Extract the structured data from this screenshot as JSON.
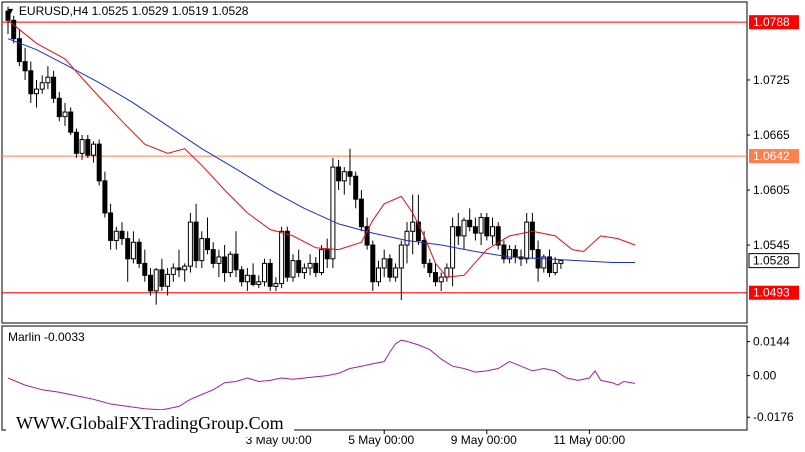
{
  "header": {
    "symbol": "EURUSD,H4",
    "open": "1.0525",
    "high": "1.0529",
    "low": "1.0519",
    "close": "1.0528"
  },
  "watermark": "WWW.GlobalFXTradingGroup.Com",
  "colors": {
    "bull_body": "#ffffff",
    "bear_body": "#000000",
    "candle_outline": "#000000",
    "sma_fast": "#e01010",
    "sma_slow": "#1a2fc8",
    "level_red": "#ff0000",
    "level_orange": "#ff7f50",
    "marlin": "#a020a0",
    "current_price_box": "#ffffff"
  },
  "chart_data": [
    {
      "type": "candlestick",
      "symbol": "EURUSD",
      "timeframe": "H4",
      "y_ticks": [
        1.0725,
        1.0665,
        1.0605,
        1.0545
      ],
      "y_range": [
        1.046,
        1.081
      ],
      "x_labels": [
        "3 May 00:00",
        "5 May 00:00",
        "9 May 00:00",
        "11 May 00:00"
      ],
      "x_label_bar_index": [
        48,
        66,
        84,
        102
      ],
      "horizontal_levels": [
        {
          "price": 1.0788,
          "label": "1.0788",
          "color": "#ff0000"
        },
        {
          "price": 1.0642,
          "label": "1.0642",
          "color": "#ff7f50"
        },
        {
          "price": 1.0493,
          "label": "1.0493",
          "color": "#ff0000"
        }
      ],
      "current_price": {
        "price": 1.0528,
        "label": "1.0528"
      },
      "candles": [
        [
          1.08,
          1.0805,
          1.0775,
          1.079
        ],
        [
          1.079,
          1.0795,
          1.0765,
          1.077
        ],
        [
          1.077,
          1.078,
          1.074,
          1.0745
        ],
        [
          1.0745,
          1.076,
          1.0725,
          1.0735
        ],
        [
          1.0735,
          1.0745,
          1.07,
          1.071
        ],
        [
          1.071,
          1.0725,
          1.0695,
          1.0715
        ],
        [
          1.0715,
          1.073,
          1.071,
          1.0722
        ],
        [
          1.0722,
          1.074,
          1.0715,
          1.0728
        ],
        [
          1.0728,
          1.0735,
          1.07,
          1.0705
        ],
        [
          1.0705,
          1.0712,
          1.068,
          1.0685
        ],
        [
          1.0685,
          1.07,
          1.0675,
          1.069
        ],
        [
          1.069,
          1.0695,
          1.0665,
          1.0668
        ],
        [
          1.0668,
          1.0672,
          1.064,
          1.0645
        ],
        [
          1.0645,
          1.0665,
          1.0638,
          1.066
        ],
        [
          1.066,
          1.0665,
          1.064,
          1.0643
        ],
        [
          1.0643,
          1.0658,
          1.0635,
          1.0655
        ],
        [
          1.0655,
          1.066,
          1.061,
          1.0615
        ],
        [
          1.0615,
          1.0625,
          1.0575,
          1.058
        ],
        [
          1.058,
          1.059,
          1.054,
          1.055
        ],
        [
          1.055,
          1.0565,
          1.054,
          1.056
        ],
        [
          1.056,
          1.057,
          1.0545,
          1.0552
        ],
        [
          1.0552,
          1.056,
          1.0505,
          1.053
        ],
        [
          1.053,
          1.056,
          1.0525,
          1.0548
        ],
        [
          1.0548,
          1.0552,
          1.052,
          1.0525
        ],
        [
          1.0525,
          1.054,
          1.0505,
          1.0512
        ],
        [
          1.0512,
          1.052,
          1.049,
          1.0495
        ],
        [
          1.0495,
          1.052,
          1.048,
          1.0518
        ],
        [
          1.0518,
          1.053,
          1.0495,
          1.05
        ],
        [
          1.05,
          1.052,
          1.049,
          1.0513
        ],
        [
          1.0513,
          1.0525,
          1.0505,
          1.052
        ],
        [
          1.052,
          1.054,
          1.051,
          1.0518
        ],
        [
          1.0518,
          1.0525,
          1.0505,
          1.0522
        ],
        [
          1.0522,
          1.058,
          1.0515,
          1.057
        ],
        [
          1.057,
          1.059,
          1.052,
          1.0528
        ],
        [
          1.0528,
          1.056,
          1.052,
          1.0552
        ],
        [
          1.0552,
          1.0575,
          1.0535,
          1.054
        ],
        [
          1.054,
          1.0548,
          1.052,
          1.0525
        ],
        [
          1.0525,
          1.054,
          1.051,
          1.0532
        ],
        [
          1.0532,
          1.0545,
          1.0505,
          1.0515
        ],
        [
          1.0515,
          1.0538,
          1.051,
          1.0535
        ],
        [
          1.0535,
          1.056,
          1.051,
          1.0518
        ],
        [
          1.0518,
          1.0522,
          1.05,
          1.0505
        ],
        [
          1.0505,
          1.052,
          1.0495,
          1.0512
        ],
        [
          1.0512,
          1.0525,
          1.05,
          1.0502
        ],
        [
          1.0502,
          1.0512,
          1.0498,
          1.0505
        ],
        [
          1.0505,
          1.053,
          1.05,
          1.0525
        ],
        [
          1.0525,
          1.053,
          1.0495,
          1.05
        ],
        [
          1.05,
          1.051,
          1.0495,
          1.0503
        ],
        [
          1.0503,
          1.0565,
          1.0498,
          1.056
        ],
        [
          1.056,
          1.0565,
          1.0505,
          1.051
        ],
        [
          1.051,
          1.0535,
          1.0505,
          1.0528
        ],
        [
          1.0528,
          1.054,
          1.051,
          1.0515
        ],
        [
          1.0515,
          1.0525,
          1.0508,
          1.052
        ],
        [
          1.052,
          1.0535,
          1.0512,
          1.0525
        ],
        [
          1.0525,
          1.0532,
          1.051,
          1.0515
        ],
        [
          1.0515,
          1.0545,
          1.0512,
          1.054
        ],
        [
          1.054,
          1.0552,
          1.052,
          1.053
        ],
        [
          1.053,
          1.064,
          1.052,
          1.063
        ],
        [
          1.063,
          1.0638,
          1.0605,
          1.0615
        ],
        [
          1.0615,
          1.063,
          1.06,
          1.0625
        ],
        [
          1.0625,
          1.065,
          1.061,
          1.062
        ],
        [
          1.062,
          1.0625,
          1.0585,
          1.0595
        ],
        [
          1.0595,
          1.0605,
          1.056,
          1.0565
        ],
        [
          1.0565,
          1.0575,
          1.054,
          1.0545
        ],
        [
          1.0545,
          1.055,
          1.0495,
          1.0505
        ],
        [
          1.0505,
          1.0528,
          1.05,
          1.052
        ],
        [
          1.052,
          1.054,
          1.051,
          1.053
        ],
        [
          1.053,
          1.0535,
          1.0505,
          1.051
        ],
        [
          1.051,
          1.0525,
          1.0505,
          1.052
        ],
        [
          1.052,
          1.055,
          1.0485,
          1.0545
        ],
        [
          1.0545,
          1.057,
          1.0525,
          1.056
        ],
        [
          1.056,
          1.06,
          1.0535,
          1.057
        ],
        [
          1.057,
          1.06,
          1.0545,
          1.055
        ],
        [
          1.055,
          1.056,
          1.052,
          1.0525
        ],
        [
          1.0525,
          1.053,
          1.051,
          1.0515
        ],
        [
          1.0515,
          1.0525,
          1.05,
          1.0505
        ],
        [
          1.0505,
          1.0515,
          1.0495,
          1.051
        ],
        [
          1.051,
          1.0525,
          1.0505,
          1.052
        ],
        [
          1.052,
          1.0575,
          1.05,
          1.0565
        ],
        [
          1.0565,
          1.058,
          1.0545,
          1.0555
        ],
        [
          1.0555,
          1.0575,
          1.054,
          1.0572
        ],
        [
          1.0572,
          1.0585,
          1.056,
          1.0565
        ],
        [
          1.0565,
          1.0575,
          1.055,
          1.0558
        ],
        [
          1.0558,
          1.058,
          1.0545,
          1.0575
        ],
        [
          1.0575,
          1.058,
          1.055,
          1.0555
        ],
        [
          1.0555,
          1.0575,
          1.0545,
          1.0565
        ],
        [
          1.0565,
          1.057,
          1.054,
          1.0545
        ],
        [
          1.0545,
          1.055,
          1.0525,
          1.053
        ],
        [
          1.053,
          1.0545,
          1.0525,
          1.054
        ],
        [
          1.054,
          1.0545,
          1.0525,
          1.0532
        ],
        [
          1.0532,
          1.054,
          1.0522,
          1.053
        ],
        [
          1.053,
          1.058,
          1.0525,
          1.057
        ],
        [
          1.057,
          1.058,
          1.053,
          1.054
        ],
        [
          1.054,
          1.055,
          1.0505,
          1.052
        ],
        [
          1.052,
          1.0535,
          1.0515,
          1.0532
        ],
        [
          1.0532,
          1.054,
          1.051,
          1.0515
        ],
        [
          1.0515,
          1.0532,
          1.0512,
          1.0525
        ],
        [
          1.0525,
          1.0529,
          1.0519,
          1.0528
        ]
      ],
      "sma_fast": [
        [
          0,
          1.079
        ],
        [
          5,
          1.0765
        ],
        [
          10,
          1.0748
        ],
        [
          14,
          1.072
        ],
        [
          17,
          1.07
        ],
        [
          20,
          1.068
        ],
        [
          24,
          1.0655
        ],
        [
          28,
          1.0645
        ],
        [
          31,
          1.065
        ],
        [
          34,
          1.0632
        ],
        [
          38,
          1.0605
        ],
        [
          42,
          1.058
        ],
        [
          46,
          1.0562
        ],
        [
          50,
          1.0555
        ],
        [
          54,
          1.0542
        ],
        [
          58,
          1.054
        ],
        [
          62,
          1.0548
        ],
        [
          64,
          1.0572
        ],
        [
          66,
          1.059
        ],
        [
          69,
          1.0598
        ],
        [
          71,
          1.058
        ],
        [
          73,
          1.0555
        ],
        [
          75,
          1.0525
        ],
        [
          77,
          1.051
        ],
        [
          80,
          1.0512
        ],
        [
          84,
          1.054
        ],
        [
          88,
          1.0555
        ],
        [
          92,
          1.056
        ],
        [
          96,
          1.0555
        ],
        [
          99,
          1.054
        ],
        [
          101,
          1.0538
        ],
        [
          104,
          1.0555
        ],
        [
          107,
          1.0552
        ],
        [
          110,
          1.0545
        ]
      ],
      "sma_slow": [
        [
          0,
          1.077
        ],
        [
          5,
          1.0758
        ],
        [
          10,
          1.0742
        ],
        [
          16,
          1.0722
        ],
        [
          22,
          1.07
        ],
        [
          28,
          1.0675
        ],
        [
          34,
          1.065
        ],
        [
          40,
          1.0628
        ],
        [
          46,
          1.0605
        ],
        [
          52,
          1.0585
        ],
        [
          58,
          1.0568
        ],
        [
          64,
          1.0558
        ],
        [
          70,
          1.055
        ],
        [
          76,
          1.0545
        ],
        [
          82,
          1.0538
        ],
        [
          88,
          1.0532
        ],
        [
          94,
          1.053
        ],
        [
          100,
          1.0528
        ],
        [
          106,
          1.0526
        ],
        [
          110,
          1.0526
        ]
      ]
    },
    {
      "type": "line",
      "name": "Marlin",
      "current_label": "Marlin -0.0033",
      "y_ticks": [
        0.0144,
        0.0,
        -0.0176
      ],
      "y_tick_labels": [
        "0.0144",
        "0.00",
        "-0.0176"
      ],
      "y_range": [
        -0.023,
        0.021
      ],
      "values": [
        [
          0,
          -0.001
        ],
        [
          3,
          -0.004
        ],
        [
          6,
          -0.006
        ],
        [
          9,
          -0.007
        ],
        [
          12,
          -0.0085
        ],
        [
          15,
          -0.01
        ],
        [
          18,
          -0.012
        ],
        [
          21,
          -0.013
        ],
        [
          24,
          -0.014
        ],
        [
          27,
          -0.0145
        ],
        [
          30,
          -0.013
        ],
        [
          32,
          -0.01
        ],
        [
          34,
          -0.008
        ],
        [
          36,
          -0.006
        ],
        [
          38,
          -0.003
        ],
        [
          40,
          -0.0025
        ],
        [
          42,
          -0.001
        ],
        [
          44,
          -0.0025
        ],
        [
          46,
          -0.002
        ],
        [
          48,
          -0.001
        ],
        [
          50,
          -0.0015
        ],
        [
          52,
          -0.001
        ],
        [
          54,
          -0.0005
        ],
        [
          56,
          0.0
        ],
        [
          58,
          0.001
        ],
        [
          60,
          0.003
        ],
        [
          62,
          0.004
        ],
        [
          64,
          0.005
        ],
        [
          66,
          0.006
        ],
        [
          67,
          0.01
        ],
        [
          68,
          0.0135
        ],
        [
          69,
          0.015
        ],
        [
          70,
          0.0145
        ],
        [
          72,
          0.013
        ],
        [
          74,
          0.011
        ],
        [
          76,
          0.007
        ],
        [
          78,
          0.004
        ],
        [
          80,
          0.003
        ],
        [
          82,
          0.0015
        ],
        [
          84,
          0.002
        ],
        [
          86,
          0.003
        ],
        [
          88,
          0.006
        ],
        [
          90,
          0.004
        ],
        [
          92,
          0.002
        ],
        [
          94,
          0.003
        ],
        [
          96,
          0.002
        ],
        [
          98,
          -0.001
        ],
        [
          100,
          -0.002
        ],
        [
          102,
          -0.001
        ],
        [
          103,
          0.002
        ],
        [
          104,
          -0.002
        ],
        [
          106,
          -0.003
        ],
        [
          107,
          -0.004
        ],
        [
          108,
          -0.0025
        ],
        [
          110,
          -0.0033
        ]
      ]
    }
  ]
}
